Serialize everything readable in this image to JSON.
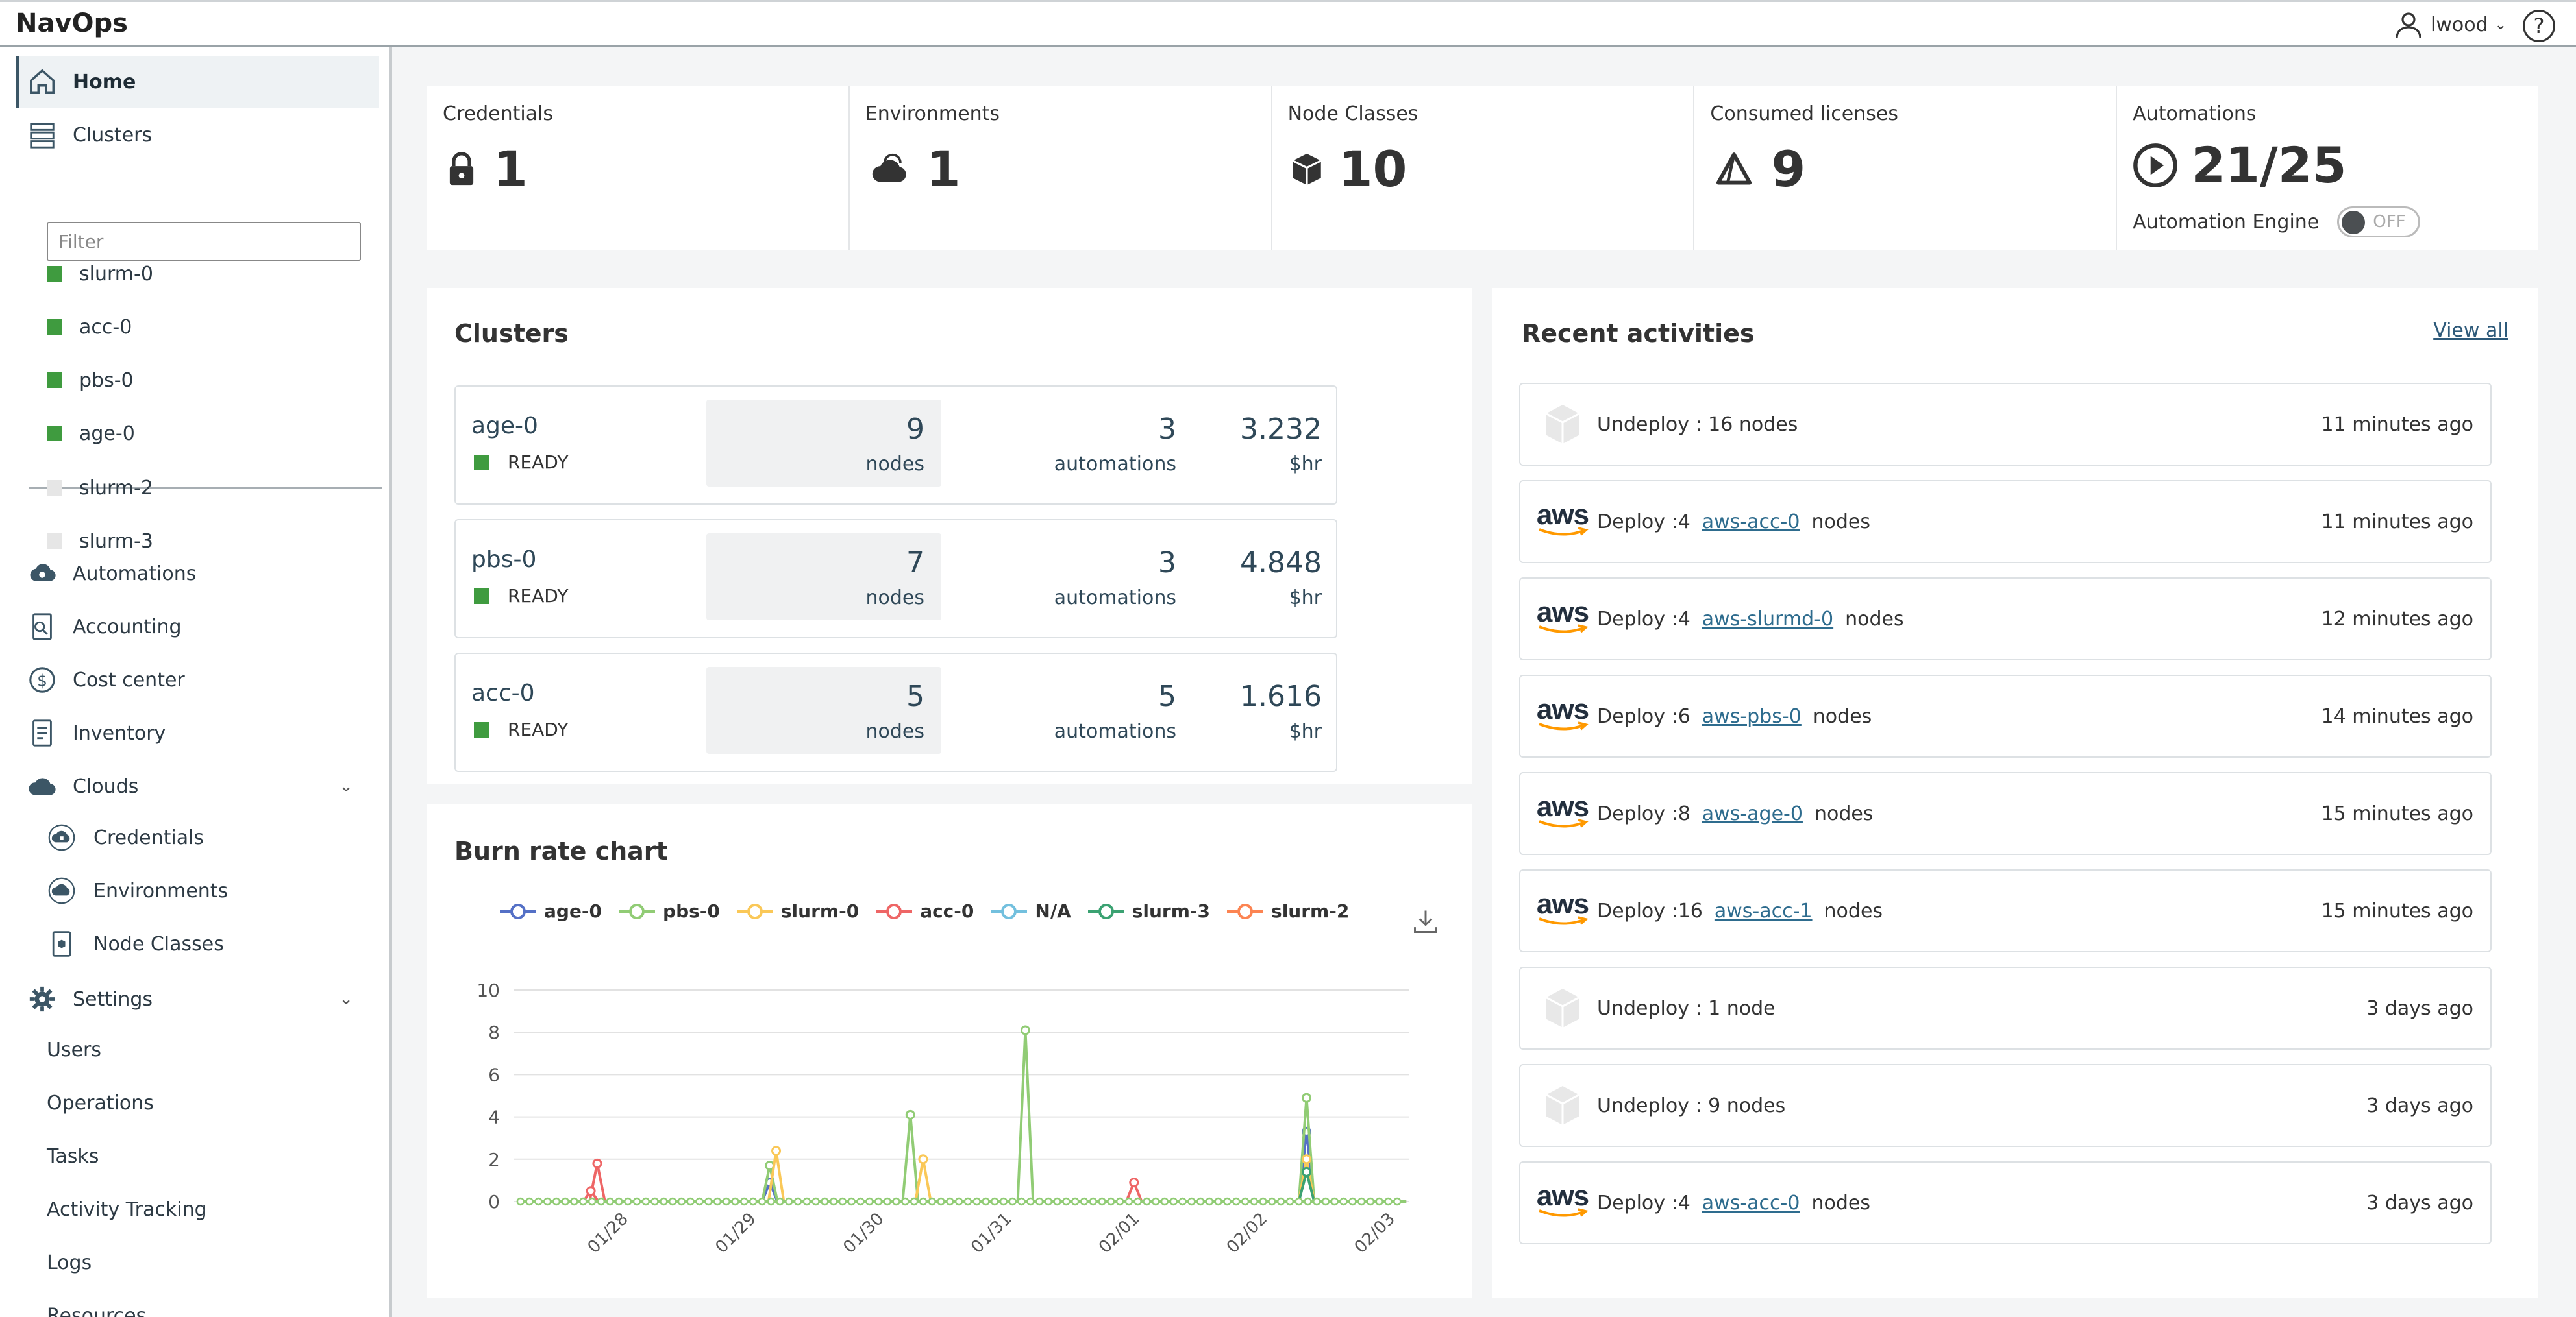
{
  "app": {
    "title": "NavOps"
  },
  "user": {
    "name": "lwood",
    "caret": "⌄",
    "help": "?"
  },
  "sidebar": {
    "home": "Home",
    "clusters": "Clusters",
    "filter_placeholder": "Filter",
    "active_clusters": [
      {
        "name": "slurm-0",
        "color": "#3f9b3f"
      },
      {
        "name": "acc-0",
        "color": "#3f9b3f"
      },
      {
        "name": "pbs-0",
        "color": "#3f9b3f"
      },
      {
        "name": "age-0",
        "color": "#3f9b3f"
      }
    ],
    "inactive_clusters": [
      {
        "name": "slurm-2",
        "color": "#e6e6e6"
      },
      {
        "name": "slurm-3",
        "color": "#e6e6e6"
      }
    ],
    "automations": "Automations",
    "accounting": "Accounting",
    "cost_center": "Cost center",
    "inventory": "Inventory",
    "clouds": "Clouds",
    "credentials": "Credentials",
    "environments": "Environments",
    "node_classes": "Node Classes",
    "settings": "Settings",
    "users": "Users",
    "operations": "Operations",
    "tasks": "Tasks",
    "activity_tracking": "Activity Tracking",
    "logs": "Logs",
    "resources": "Resources"
  },
  "stats": [
    {
      "label": "Credentials",
      "value": "1",
      "icon": "lock-icon"
    },
    {
      "label": "Environments",
      "value": "1",
      "icon": "cloud-icon"
    },
    {
      "label": "Node Classes",
      "value": "10",
      "icon": "cube-icon"
    },
    {
      "label": "Consumed licenses",
      "value": "9",
      "icon": "delta-icon"
    },
    {
      "label": "Automations",
      "value": "21/25",
      "icon": "play-circle-icon"
    }
  ],
  "automation_engine": {
    "label": "Automation Engine",
    "state": "OFF"
  },
  "clusters_card": {
    "title": "Clusters",
    "rows": [
      {
        "name": "age-0",
        "status": "READY",
        "nodes": "9",
        "nodes_label": "nodes",
        "automations": "3",
        "automations_label": "automations",
        "cost": "3.232",
        "cost_label": "$hr"
      },
      {
        "name": "pbs-0",
        "status": "READY",
        "nodes": "7",
        "nodes_label": "nodes",
        "automations": "3",
        "automations_label": "automations",
        "cost": "4.848",
        "cost_label": "$hr"
      },
      {
        "name": "acc-0",
        "status": "READY",
        "nodes": "5",
        "nodes_label": "nodes",
        "automations": "5",
        "automations_label": "automations",
        "cost": "1.616",
        "cost_label": "$hr"
      }
    ]
  },
  "activities": {
    "title": "Recent activities",
    "view_all": "View all",
    "items": [
      {
        "type": "undeploy",
        "text": "Undeploy : 16 nodes",
        "link": "",
        "suffix": "",
        "time": "11 minutes ago"
      },
      {
        "type": "aws",
        "text": "Deploy :4",
        "link": "aws-acc-0",
        "suffix": "nodes",
        "time": "11 minutes ago"
      },
      {
        "type": "aws",
        "text": "Deploy :4",
        "link": "aws-slurmd-0",
        "suffix": "nodes",
        "time": "12 minutes ago"
      },
      {
        "type": "aws",
        "text": "Deploy :6",
        "link": "aws-pbs-0",
        "suffix": "nodes",
        "time": "14 minutes ago"
      },
      {
        "type": "aws",
        "text": "Deploy :8",
        "link": "aws-age-0",
        "suffix": "nodes",
        "time": "15 minutes ago"
      },
      {
        "type": "aws",
        "text": "Deploy :16",
        "link": "aws-acc-1",
        "suffix": "nodes",
        "time": "15 minutes ago"
      },
      {
        "type": "undeploy",
        "text": "Undeploy : 1 node",
        "link": "",
        "suffix": "",
        "time": "3 days ago"
      },
      {
        "type": "undeploy",
        "text": "Undeploy : 9 nodes",
        "link": "",
        "suffix": "",
        "time": "3 days ago"
      },
      {
        "type": "aws",
        "text": "Deploy :4",
        "link": "aws-acc-0",
        "suffix": "nodes",
        "time": "3 days ago"
      }
    ],
    "aws_word": "aws"
  },
  "chart_data": {
    "type": "line",
    "title": "Burn rate chart",
    "ylim": [
      0,
      10
    ],
    "yticks": [
      0,
      2,
      4,
      6,
      8,
      10
    ],
    "x_ticks": [
      "01/28",
      "01/29",
      "01/30",
      "01/31",
      "02/01",
      "02/02",
      "02/03"
    ],
    "grid": true,
    "legend_position": "top",
    "series": [
      {
        "name": "age-0",
        "color": "#5470c6",
        "peaks": [
          [
            2.0,
            0.9
          ],
          [
            6.2,
            3.3
          ]
        ]
      },
      {
        "name": "pbs-0",
        "color": "#91cc75",
        "peaks": [
          [
            2.0,
            1.7
          ],
          [
            3.1,
            4.1
          ],
          [
            4.0,
            8.1
          ],
          [
            6.2,
            4.9
          ]
        ]
      },
      {
        "name": "slurm-0",
        "color": "#fac858",
        "peaks": [
          [
            2.05,
            2.4
          ],
          [
            3.2,
            2.0
          ],
          [
            6.2,
            2.0
          ]
        ]
      },
      {
        "name": "acc-0",
        "color": "#ee6666",
        "peaks": [
          [
            0.6,
            0.5
          ],
          [
            0.65,
            1.8
          ],
          [
            4.85,
            0.9
          ]
        ]
      },
      {
        "name": "N/A",
        "color": "#73c0de",
        "peaks": []
      },
      {
        "name": "slurm-3",
        "color": "#3ba272",
        "peaks": [
          [
            6.2,
            1.4
          ]
        ]
      },
      {
        "name": "slurm-2",
        "color": "#fc8452",
        "peaks": []
      }
    ]
  }
}
